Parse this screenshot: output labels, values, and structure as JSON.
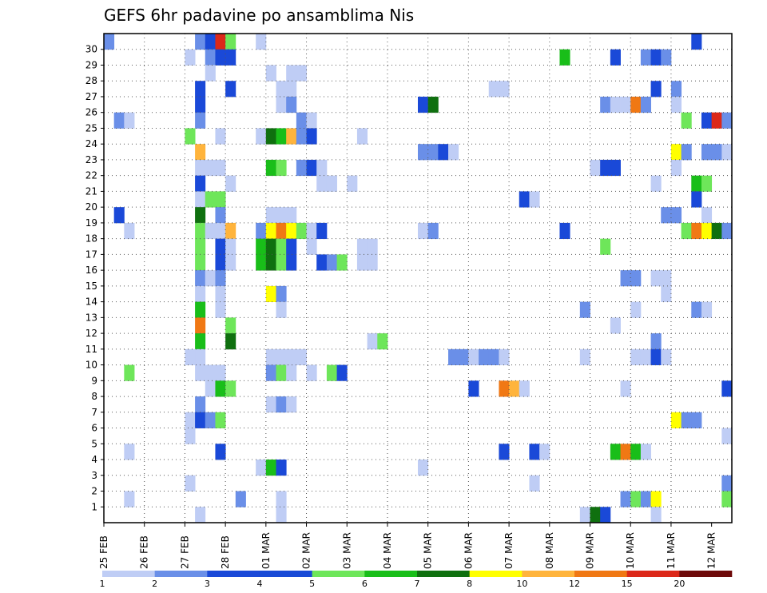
{
  "chart_data": {
    "type": "heatmap",
    "title": "GEFS 6hr padavine po ansamblima Nis",
    "xlabel": "",
    "ylabel": "",
    "x_tick_labels": [
      "25 FEB",
      "26 FEB",
      "27 FEB",
      "28 FEB",
      "01 MAR",
      "02 MAR",
      "03 MAR",
      "04 MAR",
      "05 MAR",
      "06 MAR",
      "07 MAR",
      "08 MAR",
      "09 MAR",
      "10 MAR",
      "11 MAR",
      "12 MAR"
    ],
    "x_range_steps": [
      0,
      61
    ],
    "steps_per_day": 4,
    "y_tick_labels": [
      "1",
      "2",
      "3",
      "4",
      "5",
      "6",
      "7",
      "8",
      "9",
      "10",
      "11",
      "12",
      "13",
      "14",
      "15",
      "16",
      "17",
      "18",
      "19",
      "20",
      "21",
      "22",
      "23",
      "24",
      "25",
      "26",
      "27",
      "28",
      "29",
      "30"
    ],
    "y_range_members": [
      0,
      30
    ],
    "grid": "dotted",
    "colorbar": {
      "labels": [
        "1",
        "2",
        "3",
        "4",
        "5",
        "6",
        "7",
        "8",
        "10",
        "12",
        "15",
        "20"
      ],
      "colors": [
        "#bfcdf5",
        "#6a8fe8",
        "#1a49d8",
        "#184ad6",
        "#6ee65a",
        "#19be19",
        "#0f700f",
        "#ffff00",
        "#ffb43c",
        "#f07814",
        "#dc2819",
        "#6e0a0a"
      ]
    },
    "levels": {
      "1": "#bfcdf5",
      "2": "#6a8fe8",
      "3": "#1a49d8",
      "4": "#6ee65a",
      "5": "#19be19",
      "6": "#0f700f",
      "7": "#ffff00",
      "8": "#ffb43c",
      "9": "#f07814",
      "10": "#dc2819"
    },
    "cells": [
      [
        0,
        30,
        2
      ],
      [
        9,
        30,
        2
      ],
      [
        10,
        30,
        3
      ],
      [
        11,
        30,
        10
      ],
      [
        12,
        30,
        4
      ],
      [
        15,
        30,
        1
      ],
      [
        58,
        30,
        3
      ],
      [
        8,
        29,
        1
      ],
      [
        10,
        29,
        2
      ],
      [
        11,
        29,
        3
      ],
      [
        12,
        29,
        3
      ],
      [
        45,
        29,
        5
      ],
      [
        50,
        29,
        3
      ],
      [
        53,
        29,
        2
      ],
      [
        54,
        29,
        3
      ],
      [
        55,
        29,
        2
      ],
      [
        10,
        28,
        1
      ],
      [
        16,
        28,
        1
      ],
      [
        18,
        28,
        1
      ],
      [
        19,
        28,
        1
      ],
      [
        9,
        27,
        3
      ],
      [
        12,
        27,
        3
      ],
      [
        17,
        27,
        1
      ],
      [
        18,
        27,
        1
      ],
      [
        38,
        27,
        1
      ],
      [
        39,
        27,
        1
      ],
      [
        54,
        27,
        3
      ],
      [
        56,
        27,
        2
      ],
      [
        9,
        26,
        3
      ],
      [
        17,
        26,
        1
      ],
      [
        18,
        26,
        2
      ],
      [
        31,
        26,
        3
      ],
      [
        32,
        26,
        6
      ],
      [
        49,
        26,
        2
      ],
      [
        50,
        26,
        1
      ],
      [
        51,
        26,
        1
      ],
      [
        52,
        26,
        9
      ],
      [
        53,
        26,
        2
      ],
      [
        56,
        26,
        1
      ],
      [
        1,
        25,
        2
      ],
      [
        2,
        25,
        1
      ],
      [
        9,
        25,
        2
      ],
      [
        19,
        25,
        2
      ],
      [
        20,
        25,
        1
      ],
      [
        57,
        25,
        4
      ],
      [
        59,
        25,
        3
      ],
      [
        60,
        25,
        10
      ],
      [
        61,
        25,
        2
      ],
      [
        8,
        24,
        4
      ],
      [
        11,
        24,
        1
      ],
      [
        15,
        24,
        1
      ],
      [
        16,
        24,
        6
      ],
      [
        17,
        24,
        5
      ],
      [
        18,
        24,
        8
      ],
      [
        19,
        24,
        2
      ],
      [
        20,
        24,
        3
      ],
      [
        25,
        24,
        1
      ],
      [
        9,
        23,
        8
      ],
      [
        31,
        23,
        2
      ],
      [
        32,
        23,
        2
      ],
      [
        33,
        23,
        3
      ],
      [
        34,
        23,
        1
      ],
      [
        56,
        23,
        7
      ],
      [
        57,
        23,
        2
      ],
      [
        59,
        23,
        2
      ],
      [
        60,
        23,
        2
      ],
      [
        61,
        23,
        1
      ],
      [
        9,
        22,
        1
      ],
      [
        10,
        22,
        1
      ],
      [
        11,
        22,
        1
      ],
      [
        16,
        22,
        5
      ],
      [
        17,
        22,
        4
      ],
      [
        19,
        22,
        2
      ],
      [
        20,
        22,
        3
      ],
      [
        21,
        22,
        1
      ],
      [
        48,
        22,
        1
      ],
      [
        49,
        22,
        3
      ],
      [
        50,
        22,
        3
      ],
      [
        56,
        22,
        1
      ],
      [
        9,
        21,
        3
      ],
      [
        12,
        21,
        1
      ],
      [
        21,
        21,
        1
      ],
      [
        22,
        21,
        1
      ],
      [
        24,
        21,
        1
      ],
      [
        54,
        21,
        1
      ],
      [
        58,
        21,
        5
      ],
      [
        59,
        21,
        4
      ],
      [
        9,
        20,
        1
      ],
      [
        10,
        20,
        4
      ],
      [
        11,
        20,
        4
      ],
      [
        41,
        20,
        3
      ],
      [
        42,
        20,
        1
      ],
      [
        58,
        20,
        3
      ],
      [
        1,
        19,
        3
      ],
      [
        9,
        19,
        6
      ],
      [
        11,
        19,
        2
      ],
      [
        16,
        19,
        1
      ],
      [
        17,
        19,
        1
      ],
      [
        18,
        19,
        1
      ],
      [
        55,
        19,
        2
      ],
      [
        56,
        19,
        2
      ],
      [
        59,
        19,
        1
      ],
      [
        2,
        18,
        1
      ],
      [
        9,
        18,
        4
      ],
      [
        10,
        18,
        1
      ],
      [
        11,
        18,
        1
      ],
      [
        12,
        18,
        8
      ],
      [
        15,
        18,
        2
      ],
      [
        16,
        18,
        7
      ],
      [
        17,
        18,
        9
      ],
      [
        18,
        18,
        7
      ],
      [
        19,
        18,
        4
      ],
      [
        20,
        18,
        1
      ],
      [
        21,
        18,
        3
      ],
      [
        31,
        18,
        1
      ],
      [
        32,
        18,
        2
      ],
      [
        45,
        18,
        3
      ],
      [
        57,
        18,
        4
      ],
      [
        58,
        18,
        9
      ],
      [
        59,
        18,
        7
      ],
      [
        60,
        18,
        6
      ],
      [
        61,
        18,
        2
      ],
      [
        9,
        17,
        4
      ],
      [
        11,
        17,
        3
      ],
      [
        12,
        17,
        1
      ],
      [
        15,
        17,
        5
      ],
      [
        16,
        17,
        6
      ],
      [
        17,
        17,
        4
      ],
      [
        18,
        17,
        3
      ],
      [
        20,
        17,
        1
      ],
      [
        25,
        17,
        1
      ],
      [
        26,
        17,
        1
      ],
      [
        49,
        17,
        4
      ],
      [
        9,
        16,
        4
      ],
      [
        11,
        16,
        3
      ],
      [
        12,
        16,
        1
      ],
      [
        15,
        16,
        5
      ],
      [
        16,
        16,
        6
      ],
      [
        17,
        16,
        4
      ],
      [
        18,
        16,
        3
      ],
      [
        21,
        16,
        3
      ],
      [
        22,
        16,
        2
      ],
      [
        23,
        16,
        4
      ],
      [
        25,
        16,
        1
      ],
      [
        26,
        16,
        1
      ],
      [
        9,
        15,
        2
      ],
      [
        10,
        15,
        1
      ],
      [
        11,
        15,
        2
      ],
      [
        51,
        15,
        2
      ],
      [
        52,
        15,
        2
      ],
      [
        54,
        15,
        1
      ],
      [
        55,
        15,
        1
      ],
      [
        9,
        14,
        1
      ],
      [
        11,
        14,
        1
      ],
      [
        16,
        14,
        7
      ],
      [
        17,
        14,
        2
      ],
      [
        55,
        14,
        1
      ],
      [
        9,
        13,
        5
      ],
      [
        11,
        13,
        1
      ],
      [
        17,
        13,
        1
      ],
      [
        47,
        13,
        2
      ],
      [
        52,
        13,
        1
      ],
      [
        58,
        13,
        2
      ],
      [
        59,
        13,
        1
      ],
      [
        9,
        12,
        9
      ],
      [
        12,
        12,
        4
      ],
      [
        50,
        12,
        1
      ],
      [
        9,
        11,
        5
      ],
      [
        12,
        11,
        6
      ],
      [
        26,
        11,
        1
      ],
      [
        27,
        11,
        4
      ],
      [
        54,
        11,
        2
      ],
      [
        8,
        10,
        1
      ],
      [
        9,
        10,
        1
      ],
      [
        16,
        10,
        1
      ],
      [
        17,
        10,
        1
      ],
      [
        18,
        10,
        1
      ],
      [
        19,
        10,
        1
      ],
      [
        34,
        10,
        2
      ],
      [
        35,
        10,
        2
      ],
      [
        36,
        10,
        1
      ],
      [
        37,
        10,
        2
      ],
      [
        38,
        10,
        2
      ],
      [
        39,
        10,
        1
      ],
      [
        47,
        10,
        1
      ],
      [
        52,
        10,
        1
      ],
      [
        53,
        10,
        1
      ],
      [
        54,
        10,
        3
      ],
      [
        55,
        10,
        1
      ],
      [
        2,
        9,
        4
      ],
      [
        9,
        9,
        1
      ],
      [
        10,
        9,
        1
      ],
      [
        11,
        9,
        1
      ],
      [
        16,
        9,
        2
      ],
      [
        17,
        9,
        4
      ],
      [
        18,
        9,
        1
      ],
      [
        20,
        9,
        1
      ],
      [
        22,
        9,
        4
      ],
      [
        23,
        9,
        3
      ],
      [
        10,
        8,
        1
      ],
      [
        11,
        8,
        5
      ],
      [
        12,
        8,
        4
      ],
      [
        36,
        8,
        3
      ],
      [
        39,
        8,
        9
      ],
      [
        40,
        8,
        8
      ],
      [
        41,
        8,
        1
      ],
      [
        51,
        8,
        1
      ],
      [
        61,
        8,
        3
      ],
      [
        9,
        7,
        2
      ],
      [
        16,
        7,
        1
      ],
      [
        17,
        7,
        2
      ],
      [
        18,
        7,
        1
      ],
      [
        8,
        6,
        1
      ],
      [
        9,
        6,
        3
      ],
      [
        10,
        6,
        2
      ],
      [
        11,
        6,
        4
      ],
      [
        56,
        6,
        7
      ],
      [
        57,
        6,
        2
      ],
      [
        58,
        6,
        2
      ],
      [
        8,
        5,
        1
      ],
      [
        61,
        5,
        1
      ],
      [
        2,
        4,
        1
      ],
      [
        11,
        4,
        3
      ],
      [
        39,
        4,
        3
      ],
      [
        42,
        4,
        3
      ],
      [
        43,
        4,
        1
      ],
      [
        50,
        4,
        5
      ],
      [
        51,
        4,
        9
      ],
      [
        52,
        4,
        5
      ],
      [
        53,
        4,
        1
      ],
      [
        15,
        3,
        1
      ],
      [
        16,
        3,
        5
      ],
      [
        17,
        3,
        3
      ],
      [
        31,
        3,
        1
      ],
      [
        8,
        2,
        1
      ],
      [
        42,
        2,
        1
      ],
      [
        61,
        2,
        2
      ],
      [
        2,
        1,
        1
      ],
      [
        13,
        1,
        2
      ],
      [
        17,
        1,
        1
      ],
      [
        51,
        1,
        2
      ],
      [
        52,
        1,
        4
      ],
      [
        53,
        1,
        2
      ],
      [
        54,
        1,
        7
      ],
      [
        61,
        1,
        4
      ],
      [
        9,
        0,
        1
      ],
      [
        17,
        0,
        1
      ],
      [
        47,
        0,
        1
      ],
      [
        48,
        0,
        6
      ],
      [
        49,
        0,
        3
      ],
      [
        54,
        0,
        1
      ]
    ]
  }
}
